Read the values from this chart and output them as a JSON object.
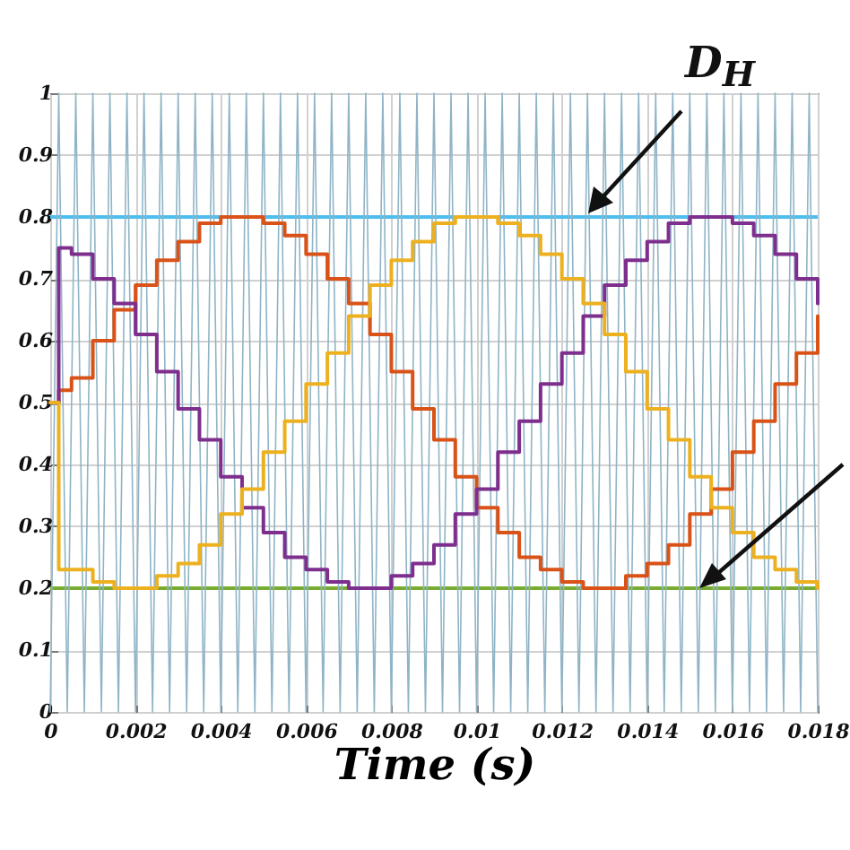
{
  "chart_data": {
    "type": "line",
    "xlabel": "Time (s)",
    "xlim": [
      0,
      0.018
    ],
    "xticks": [
      0,
      0.002,
      0.004,
      0.006,
      0.008,
      0.01,
      0.012,
      0.014,
      0.016,
      0.018
    ],
    "ylim": [
      0,
      1
    ],
    "yticks": [
      0,
      0.1,
      0.2,
      0.3,
      0.4,
      0.5,
      0.6,
      0.7,
      0.8,
      0.9,
      1
    ],
    "grid": true,
    "x": [
      0,
      0.0002,
      0.0005,
      0.001,
      0.0015,
      0.002,
      0.0025,
      0.003,
      0.0035,
      0.004,
      0.0045,
      0.005,
      0.0055,
      0.006,
      0.0065,
      0.007,
      0.0075,
      0.008,
      0.0085,
      0.009,
      0.0095,
      0.01,
      0.0105,
      0.011,
      0.0115,
      0.012,
      0.0125,
      0.013,
      0.0135,
      0.014,
      0.0145,
      0.015,
      0.0155,
      0.016,
      0.0165,
      0.017,
      0.0175,
      0.018
    ],
    "series": [
      {
        "type": "line",
        "color": "#8fb4c6",
        "x": [
          0,
          0.0002,
          0.0004,
          0.0006,
          0.0008,
          0.001,
          0.0012,
          0.0014,
          0.0016,
          0.0018,
          0.002,
          0.0022,
          0.0024,
          0.0026,
          0.0028,
          0.003,
          0.0032,
          0.0034,
          0.0036,
          0.0038,
          0.004,
          0.0042,
          0.0044,
          0.0046,
          0.0048,
          0.005,
          0.0052,
          0.0054,
          0.0056,
          0.0058,
          0.006,
          0.0062,
          0.0064,
          0.0066,
          0.0068,
          0.007,
          0.0072,
          0.0074,
          0.0076,
          0.0078,
          0.008,
          0.0082,
          0.0084,
          0.0086,
          0.0088,
          0.009,
          0.0092,
          0.0094,
          0.0096,
          0.0098,
          0.01,
          0.0102,
          0.0104,
          0.0106,
          0.0108,
          0.011,
          0.0112,
          0.0114,
          0.0116,
          0.0118,
          0.012,
          0.0122,
          0.0124,
          0.0126,
          0.0128,
          0.013,
          0.0132,
          0.0134,
          0.0136,
          0.0138,
          0.014,
          0.0142,
          0.0144,
          0.0146,
          0.0148,
          0.015,
          0.0152,
          0.0154,
          0.0156,
          0.0158,
          0.016,
          0.0162,
          0.0164,
          0.0166,
          0.0168,
          0.017,
          0.0172,
          0.0174,
          0.0176,
          0.0178,
          0.018
        ],
        "values": [
          0,
          1,
          0,
          1,
          0,
          1,
          0,
          1,
          0,
          1,
          0,
          1,
          0,
          1,
          0,
          1,
          0,
          1,
          0,
          1,
          0,
          1,
          0,
          1,
          0,
          1,
          0,
          1,
          0,
          1,
          0,
          1,
          0,
          1,
          0,
          1,
          0,
          1,
          0,
          1,
          0,
          1,
          0,
          1,
          0,
          1,
          0,
          1,
          0,
          1,
          0,
          1,
          0,
          1,
          0,
          1,
          0,
          1,
          0,
          1,
          0,
          1,
          0,
          1,
          0,
          1,
          0,
          1,
          0,
          1,
          0,
          1,
          0,
          1,
          0,
          1,
          0,
          1,
          0,
          1,
          0,
          1,
          0,
          1,
          0,
          1,
          0,
          1,
          0,
          1,
          0
        ]
      },
      {
        "type": "step",
        "color": "#d95319",
        "values": [
          0.5,
          0.52,
          0.54,
          0.6,
          0.65,
          0.69,
          0.73,
          0.76,
          0.79,
          0.8,
          0.8,
          0.79,
          0.77,
          0.74,
          0.7,
          0.66,
          0.61,
          0.55,
          0.49,
          0.44,
          0.38,
          0.33,
          0.29,
          0.25,
          0.23,
          0.21,
          0.2,
          0.2,
          0.22,
          0.24,
          0.27,
          0.32,
          0.36,
          0.42,
          0.47,
          0.53,
          0.58,
          0.64
        ]
      },
      {
        "type": "step",
        "color": "#7e2f8e",
        "values": [
          0.5,
          0.75,
          0.74,
          0.7,
          0.66,
          0.61,
          0.55,
          0.49,
          0.44,
          0.38,
          0.33,
          0.29,
          0.25,
          0.23,
          0.21,
          0.2,
          0.2,
          0.22,
          0.24,
          0.27,
          0.32,
          0.36,
          0.42,
          0.47,
          0.53,
          0.58,
          0.64,
          0.69,
          0.73,
          0.76,
          0.79,
          0.8,
          0.8,
          0.79,
          0.77,
          0.74,
          0.7,
          0.66
        ]
      },
      {
        "type": "step",
        "color": "#edb120",
        "values": [
          0.5,
          0.23,
          0.23,
          0.21,
          0.2,
          0.2,
          0.22,
          0.24,
          0.27,
          0.32,
          0.36,
          0.42,
          0.47,
          0.53,
          0.58,
          0.64,
          0.69,
          0.73,
          0.76,
          0.79,
          0.8,
          0.8,
          0.79,
          0.77,
          0.74,
          0.7,
          0.66,
          0.61,
          0.55,
          0.49,
          0.44,
          0.38,
          0.33,
          0.29,
          0.25,
          0.23,
          0.21,
          0.2
        ]
      }
    ],
    "ref_lines": [
      {
        "axis": "y",
        "value": 0.8,
        "label": "D$_{H}$",
        "color": "#4dbeee"
      },
      {
        "axis": "y",
        "value": 0.2,
        "color": "#77ac30"
      }
    ]
  }
}
